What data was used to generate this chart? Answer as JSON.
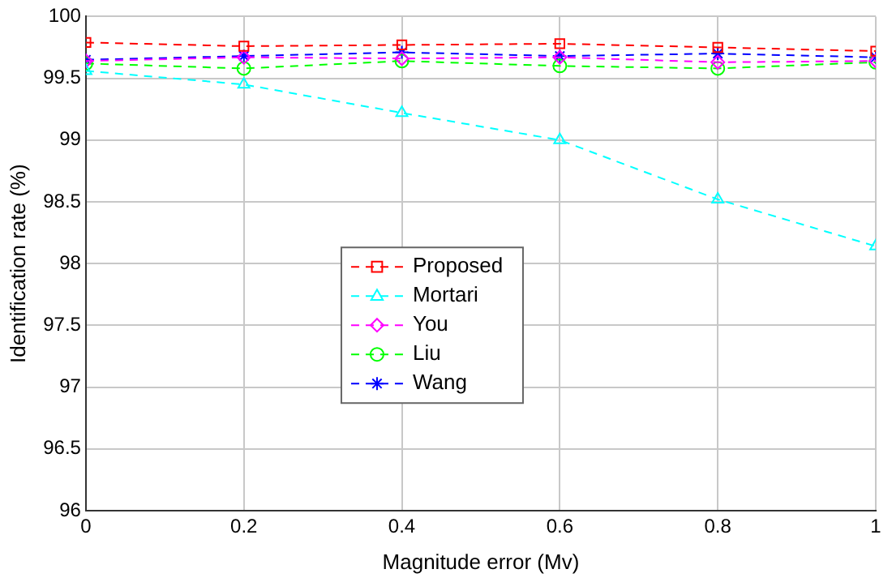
{
  "chart_data": {
    "type": "line",
    "xlabel": "Magnitude error (Mv)",
    "ylabel": "Identification rate (%)",
    "x": [
      0,
      0.2,
      0.4,
      0.6,
      0.8,
      1
    ],
    "xlim": [
      0,
      1
    ],
    "xticks": [
      0,
      0.2,
      0.4,
      0.6,
      0.8,
      1
    ],
    "ylim": [
      96,
      100
    ],
    "yticks": [
      96,
      96.5,
      97,
      97.5,
      98,
      98.5,
      99,
      99.5,
      100
    ],
    "grid": true,
    "legend": "center",
    "line_style": "dashed",
    "series": [
      {
        "name": "Proposed",
        "color": "#ff0000",
        "marker": "square",
        "values": [
          99.79,
          99.76,
          99.77,
          99.78,
          99.75,
          99.72
        ]
      },
      {
        "name": "Mortari",
        "color": "#00ffff",
        "marker": "triangle",
        "values": [
          99.56,
          99.45,
          99.22,
          99.0,
          98.52,
          98.14
        ]
      },
      {
        "name": "You",
        "color": "#ff00ff",
        "marker": "diamond",
        "values": [
          99.64,
          99.67,
          99.66,
          99.67,
          99.63,
          99.64
        ]
      },
      {
        "name": "Liu",
        "color": "#00ff00",
        "marker": "circle",
        "values": [
          99.62,
          99.58,
          99.64,
          99.6,
          99.58,
          99.63
        ]
      },
      {
        "name": "Wang",
        "color": "#0000ff",
        "marker": "cross",
        "values": [
          99.65,
          99.68,
          99.71,
          99.68,
          99.7,
          99.67
        ]
      }
    ]
  }
}
